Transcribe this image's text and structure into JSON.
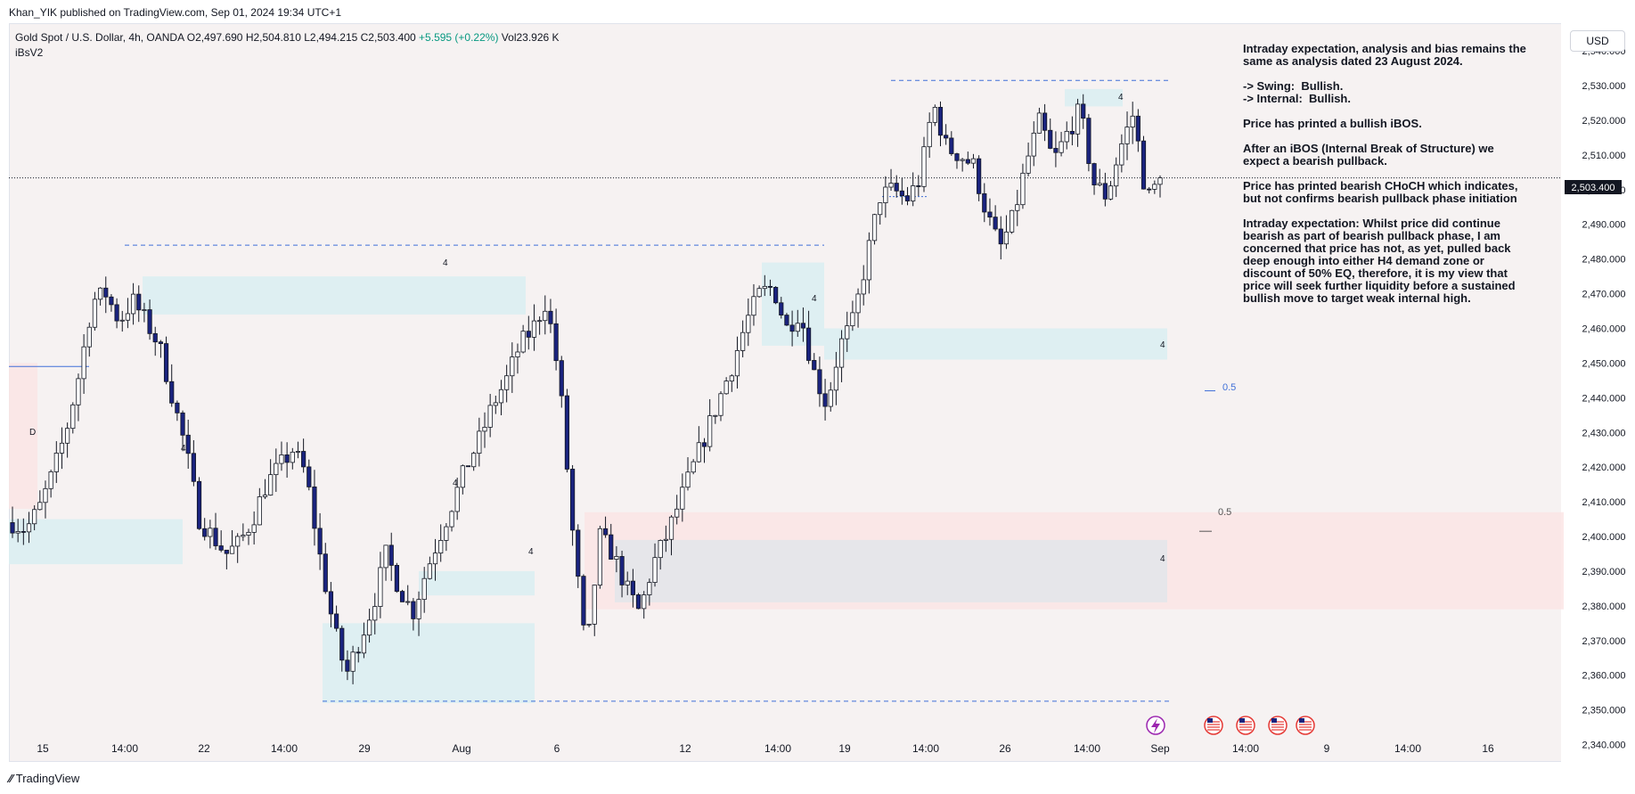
{
  "header": {
    "publisher": "Khan_YIK published on TradingView.com, Sep 01, 2024 19:34 UTC+1"
  },
  "legend": {
    "symbol": "Gold Spot / U.S. Dollar, 4h, OANDA",
    "open": "O2,497.690",
    "high": "H2,504.810",
    "low": "L2,494.215",
    "close": "C2,503.400",
    "change": "+5.595 (+0.22%)",
    "volume": "Vol23.926 K",
    "indicator": "iBsV2"
  },
  "currency_button": "USD",
  "current_price_label": "2,503.400",
  "annotation": [
    "Intraday expectation, analysis and bias remains the same as analysis dated 23 August 2024.",
    "-> Swing:  Bullish.\n-> Internal:  Bullish.",
    "Price has printed a bullish iBOS.",
    "After an iBOS (Internal Break of Structure) we expect a bearish pullback.",
    "Price has printed bearish CHoCH which indicates, but not confirms bearish pullback phase initiation",
    "Intraday expectation: Whilst price did continue bearish as part of bearish pullback phase, I am concerned that price has not, as yet, pulled back deep enough into either H4 demand zone or discount of 50% EQ, therefore, it is my view that price will seek further liquidity before a sustained bullish move to target weak internal high."
  ],
  "chart_labels": {
    "zone_label_4": "4",
    "zone_label_d": "D",
    "eq_blue": "0.5",
    "eq_red": "0.5"
  },
  "footer": {
    "brand": "TradingView"
  },
  "colors": {
    "bull": "#ffffff",
    "bear": "#1a237e",
    "demand": "#dbeef2",
    "supply": "#fbe3e3",
    "dash": "#3f6fd8"
  },
  "chart_data": {
    "type": "candlestick",
    "title": "Gold Spot / U.S. Dollar, 4h, OANDA",
    "ylim": [
      2335,
      2548
    ],
    "yticks": [
      "2,540.000",
      "2,530.000",
      "2,520.000",
      "2,510.000",
      "2,500.000",
      "2,490.000",
      "2,480.000",
      "2,470.000",
      "2,460.000",
      "2,450.000",
      "2,440.000",
      "2,430.000",
      "2,420.000",
      "2,410.000",
      "2,400.000",
      "2,390.000",
      "2,380.000",
      "2,370.000",
      "2,360.000",
      "2,350.000",
      "2,340.000"
    ],
    "xticks": [
      "15",
      "14:00",
      "22",
      "14:00",
      "29",
      "Aug",
      "6",
      "12",
      "14:00",
      "19",
      "14:00",
      "26",
      "14:00",
      "Sep",
      "14:00",
      "9",
      "14:00",
      "16"
    ],
    "current_price": 2503.4,
    "swing_high": 2531.5,
    "swing_low": 2352.5,
    "anchors": [
      2404,
      2402,
      2408,
      2418,
      2430,
      2447,
      2468,
      2470,
      2462,
      2468,
      2462,
      2455,
      2440,
      2425,
      2405,
      2400,
      2395,
      2398,
      2405,
      2415,
      2420,
      2425,
      2418,
      2395,
      2375,
      2360,
      2370,
      2380,
      2395,
      2385,
      2378,
      2390,
      2400,
      2410,
      2420,
      2428,
      2438,
      2445,
      2455,
      2460,
      2468,
      2445,
      2400,
      2365,
      2400,
      2395,
      2385,
      2378,
      2392,
      2400,
      2410,
      2420,
      2430,
      2440,
      2450,
      2462,
      2470,
      2472,
      2460,
      2465,
      2448,
      2438,
      2455,
      2462,
      2480,
      2498,
      2500,
      2497,
      2503,
      2525,
      2512,
      2510,
      2507,
      2493,
      2483,
      2492,
      2508,
      2520,
      2508,
      2516,
      2523,
      2502,
      2498,
      2512,
      2522,
      2497,
      2503
    ],
    "blocks": [
      {
        "type": "demand",
        "from": 2405,
        "to": 2392
      },
      {
        "type": "demand",
        "from": 2475,
        "to": 2464
      },
      {
        "type": "demand",
        "from": 2375,
        "to": 2352
      },
      {
        "type": "demand",
        "from": 2390,
        "to": 2383
      },
      {
        "type": "demand",
        "from": 2479,
        "to": 2455
      },
      {
        "type": "demand",
        "from": 2460,
        "to": 2451
      },
      {
        "type": "demand",
        "from": 2529,
        "to": 2524
      },
      {
        "type": "supply",
        "from": 2450,
        "to": 2408
      },
      {
        "type": "supply",
        "from": 2407,
        "to": 2379
      }
    ],
    "eq_levels": [
      2442,
      2401.5
    ]
  }
}
